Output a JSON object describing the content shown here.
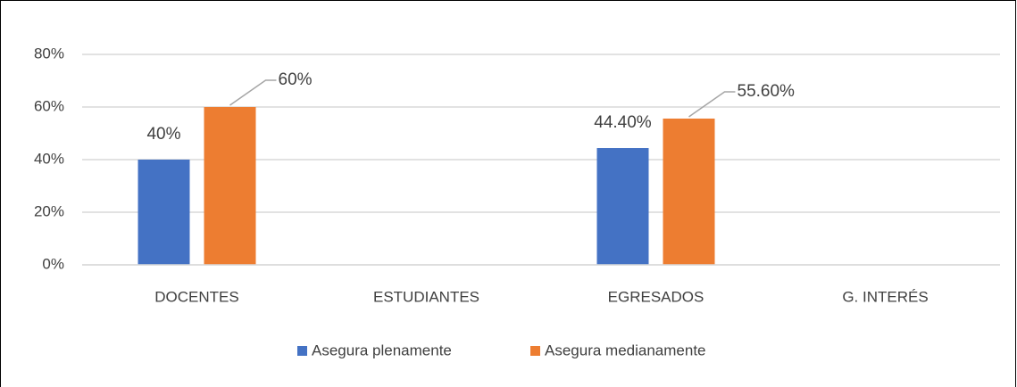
{
  "chart_data": {
    "type": "bar",
    "categories": [
      "DOCENTES",
      "ESTUDIANTES",
      "EGRESADOS",
      "G. INTERÉS"
    ],
    "series": [
      {
        "name": "Asegura plenamente",
        "color": "#4472c4",
        "values": [
          40,
          null,
          44.4,
          null
        ],
        "value_labels": [
          "40%",
          null,
          "44.40%",
          null
        ]
      },
      {
        "name": "Asegura medianamente",
        "color": "#ed7d31",
        "values": [
          60,
          null,
          55.6,
          null
        ],
        "value_labels": [
          "60%",
          null,
          "55.60%",
          null
        ]
      }
    ],
    "ylim": [
      0,
      80
    ],
    "yticks": [
      {
        "value": 0,
        "label": "0%"
      },
      {
        "value": 20,
        "label": "20%"
      },
      {
        "value": 40,
        "label": "40%"
      },
      {
        "value": 60,
        "label": "60%"
      },
      {
        "value": 80,
        "label": "80%"
      }
    ],
    "grid": true,
    "legend": "bottom"
  }
}
